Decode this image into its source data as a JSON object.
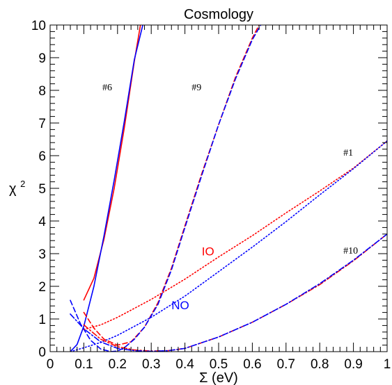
{
  "colors": {
    "io": "#ff0000",
    "no": "#0000ff",
    "frame": "#000000"
  },
  "chart_data": {
    "type": "line",
    "title": "Cosmology",
    "xlabel": "Σ (eV)",
    "ylabel": "χ",
    "ylabel_sup": "2",
    "xlim": [
      0,
      1
    ],
    "ylim": [
      0,
      10
    ],
    "x_ticks": [
      "0",
      "0.1",
      "0.2",
      "0.3",
      "0.4",
      "0.5",
      "0.6",
      "0.7",
      "0.8",
      "0.9",
      "1"
    ],
    "y_ticks": [
      "0",
      "1",
      "2",
      "3",
      "4",
      "5",
      "6",
      "7",
      "8",
      "9",
      "10"
    ],
    "grid": false,
    "annotations": [
      {
        "text": "#6",
        "x": 0.155,
        "y": 8.0
      },
      {
        "text": "#9",
        "x": 0.42,
        "y": 8.0
      },
      {
        "text": "#1",
        "x": 0.87,
        "y": 6.0
      },
      {
        "text": "#10",
        "x": 0.87,
        "y": 3.0
      },
      {
        "text": "IO",
        "x": 0.45,
        "y": 2.95,
        "color": "#ff0000"
      },
      {
        "text": "NO",
        "x": 0.36,
        "y": 1.3,
        "color": "#0000ff"
      }
    ],
    "series": [
      {
        "case": "#6",
        "ordering": "IO",
        "style": "solid",
        "color": "#ff0000",
        "x": [
          0.1,
          0.13,
          0.16,
          0.19,
          0.22,
          0.25,
          0.268
        ],
        "y": [
          1.58,
          2.25,
          3.45,
          5.0,
          6.85,
          8.9,
          10.0
        ]
      },
      {
        "case": "#6",
        "ordering": "NO",
        "style": "solid",
        "color": "#0000ff",
        "x": [
          0.06,
          0.08,
          0.1,
          0.13,
          0.16,
          0.19,
          0.22,
          0.25,
          0.275
        ],
        "y": [
          0.0,
          0.22,
          0.78,
          2.0,
          3.55,
          5.25,
          7.05,
          8.95,
          10.0
        ]
      },
      {
        "case": "#9",
        "ordering": "IO",
        "style": "dashed",
        "color": "#ff0000",
        "x": [
          0.1,
          0.13,
          0.16,
          0.2,
          0.24,
          0.28,
          0.32,
          0.36,
          0.4,
          0.45,
          0.5,
          0.55,
          0.6,
          0.62
        ],
        "y": [
          1.2,
          0.72,
          0.38,
          0.2,
          0.3,
          0.75,
          1.5,
          2.55,
          3.85,
          5.45,
          6.95,
          8.4,
          9.6,
          10.0
        ]
      },
      {
        "case": "#9",
        "ordering": "NO",
        "style": "dashed",
        "color": "#0000ff",
        "x": [
          0.06,
          0.09,
          0.12,
          0.15,
          0.18,
          0.2,
          0.22,
          0.25,
          0.28,
          0.32,
          0.36,
          0.4,
          0.45,
          0.5,
          0.55,
          0.6,
          0.625
        ],
        "y": [
          1.57,
          0.85,
          0.35,
          0.08,
          0.0,
          0.02,
          0.12,
          0.38,
          0.75,
          1.45,
          2.5,
          3.8,
          5.4,
          6.95,
          8.35,
          9.55,
          10.0
        ]
      },
      {
        "case": "#1",
        "ordering": "IO",
        "style": "dotted",
        "color": "#ff0000",
        "x": [
          0.1,
          0.15,
          0.2,
          0.3,
          0.4,
          0.5,
          0.6,
          0.7,
          0.8,
          0.9,
          1.0
        ],
        "y": [
          0.68,
          0.82,
          1.05,
          1.6,
          2.22,
          2.9,
          3.55,
          4.25,
          4.92,
          5.62,
          6.45
        ]
      },
      {
        "case": "#1",
        "ordering": "NO",
        "style": "dotted",
        "color": "#0000ff",
        "x": [
          0.06,
          0.1,
          0.15,
          0.2,
          0.3,
          0.4,
          0.5,
          0.6,
          0.7,
          0.8,
          0.9,
          1.0
        ],
        "y": [
          0.0,
          0.12,
          0.28,
          0.5,
          1.05,
          1.7,
          2.45,
          3.2,
          3.98,
          4.8,
          5.6,
          6.45
        ]
      },
      {
        "case": "#10",
        "ordering": "IO",
        "style": "dashdot",
        "color": "#ff0000",
        "x": [
          0.1,
          0.15,
          0.2,
          0.25,
          0.3,
          0.35,
          0.4,
          0.5,
          0.6,
          0.7,
          0.8,
          0.9,
          1.0
        ],
        "y": [
          0.82,
          0.38,
          0.15,
          0.05,
          0.02,
          0.03,
          0.1,
          0.45,
          0.9,
          1.45,
          2.05,
          2.78,
          3.6
        ]
      },
      {
        "case": "#10",
        "ordering": "NO",
        "style": "dashdot",
        "color": "#0000ff",
        "x": [
          0.06,
          0.1,
          0.15,
          0.2,
          0.25,
          0.3,
          0.35,
          0.4,
          0.5,
          0.6,
          0.7,
          0.8,
          0.9,
          1.0
        ],
        "y": [
          1.15,
          0.7,
          0.3,
          0.1,
          0.03,
          0.01,
          0.03,
          0.1,
          0.45,
          0.9,
          1.45,
          2.08,
          2.8,
          3.6
        ]
      }
    ]
  }
}
